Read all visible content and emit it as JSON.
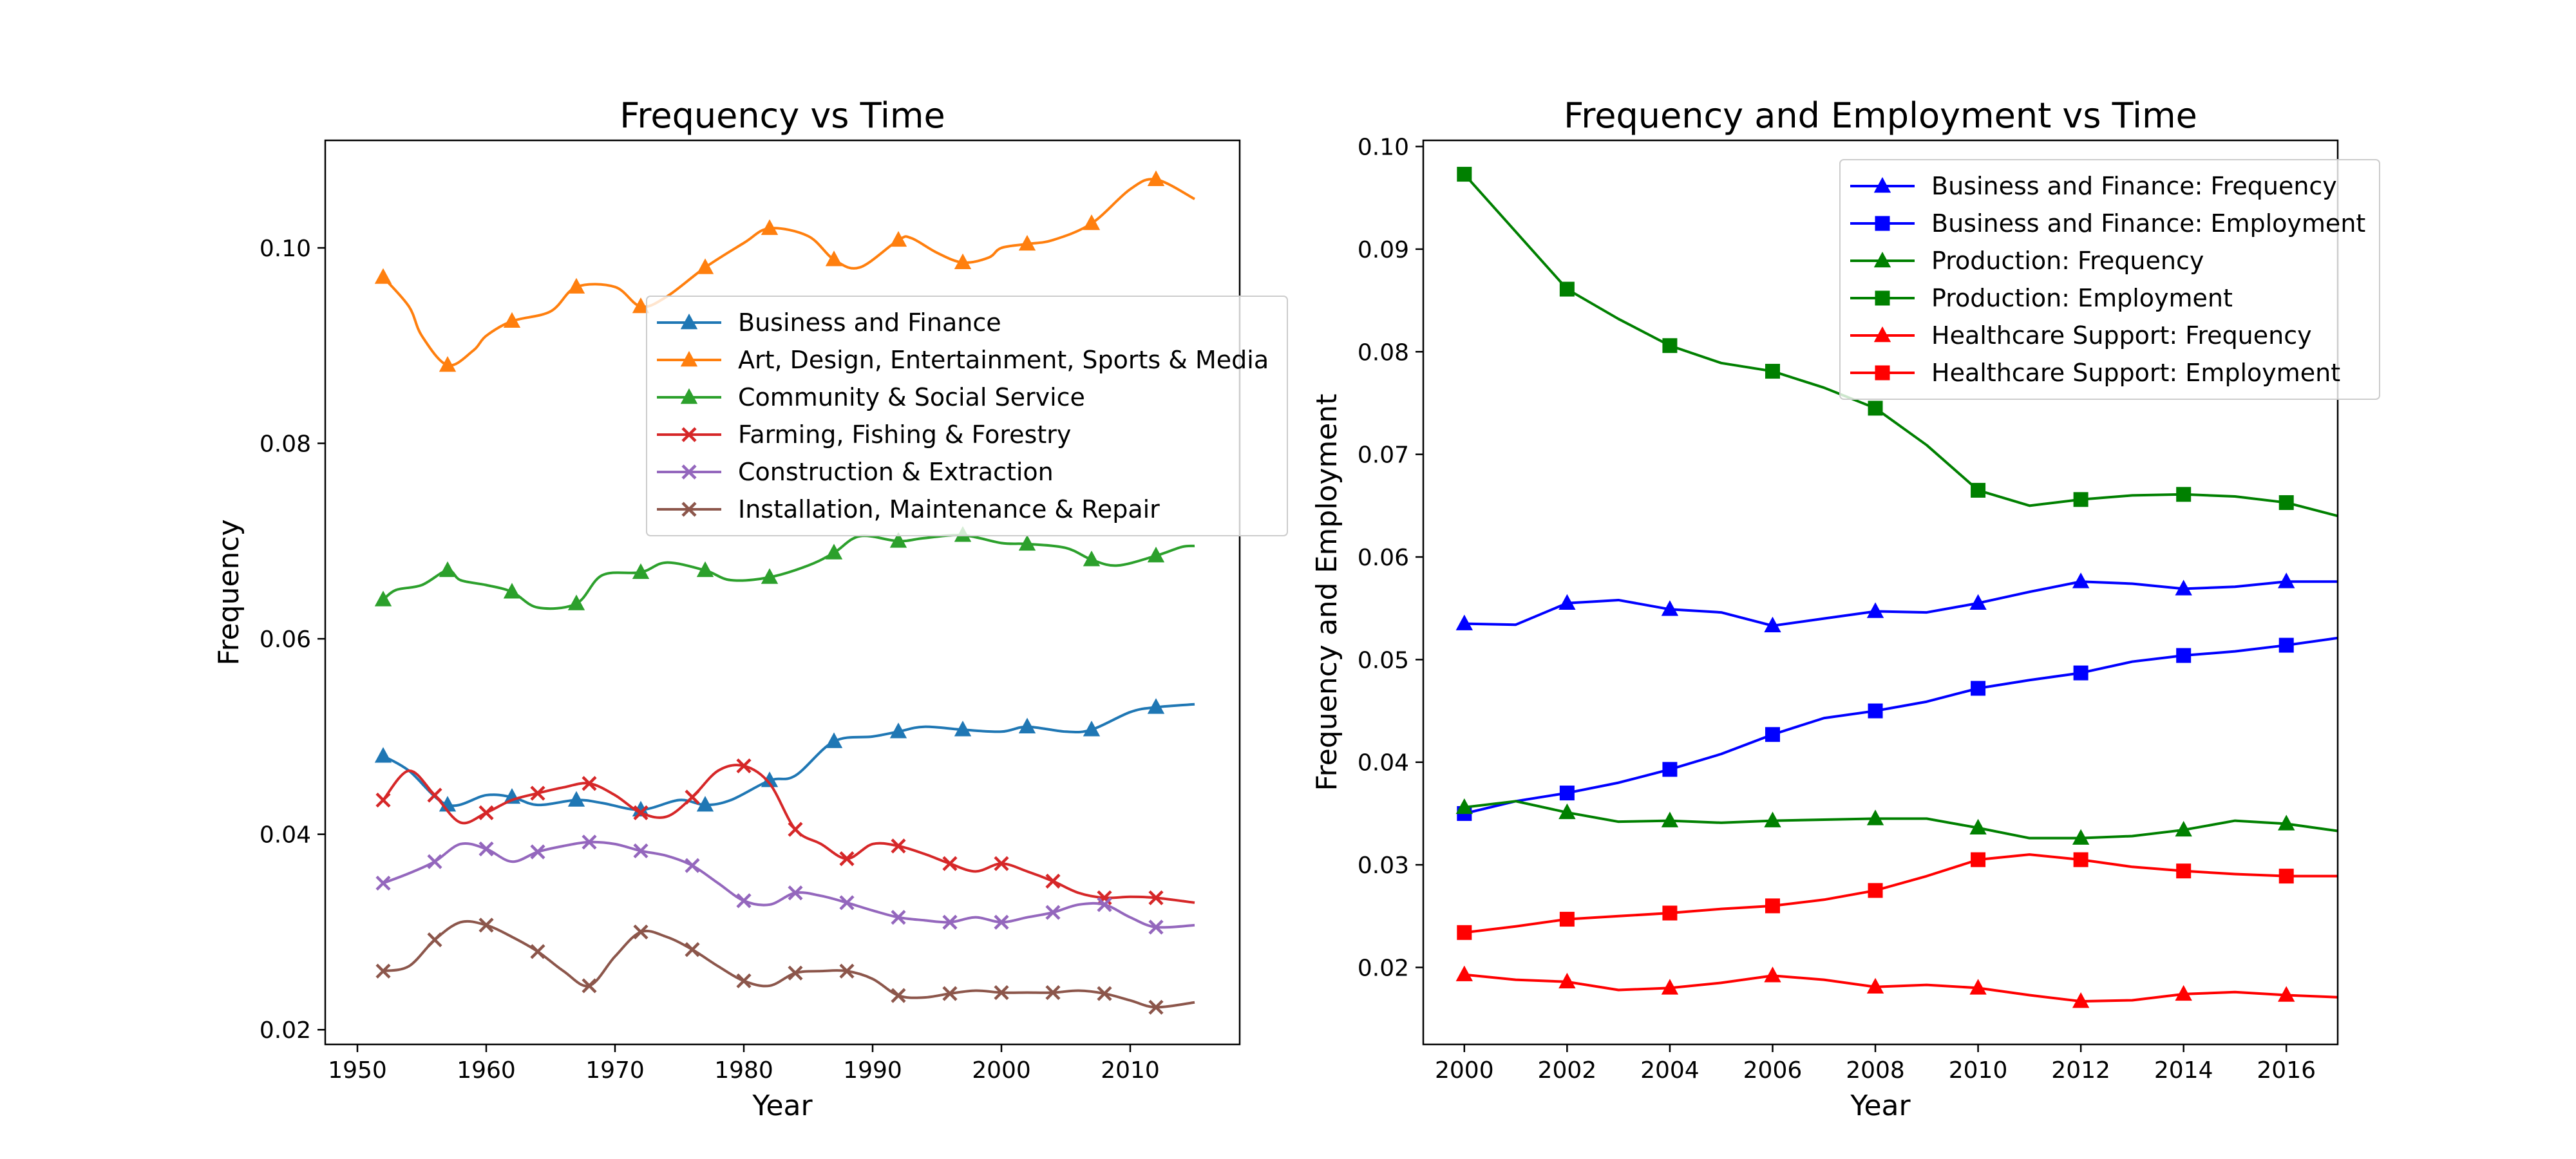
{
  "figure": {
    "background": "#ffffff"
  },
  "chart_data": [
    {
      "type": "line",
      "title": "Frequency vs Time",
      "xlabel": "Year",
      "ylabel": "Frequency",
      "xlim": [
        1947.5,
        2018.5
      ],
      "ylim": [
        0.0185,
        0.111
      ],
      "xticks": [
        1950,
        1960,
        1970,
        1980,
        1990,
        2000,
        2010
      ],
      "xtick_labels": [
        "1950",
        "1960",
        "1970",
        "1980",
        "1990",
        "2000",
        "2010"
      ],
      "yticks": [
        0.02,
        0.04,
        0.06,
        0.08,
        0.1
      ],
      "ytick_labels": [
        "0.02",
        "0.04",
        "0.06",
        "0.08",
        "0.10"
      ],
      "legend_position": "upper-right (overlapping axes edge)",
      "grid": false,
      "series": [
        {
          "name": "Business and Finance",
          "color": "#1f77b4",
          "marker": "triangle",
          "x": [
            1952,
            1954,
            1957,
            1960,
            1962,
            1964,
            1967,
            1969,
            1972,
            1975,
            1977,
            1979,
            1982,
            1984,
            1987,
            1990,
            1992,
            1994,
            1997,
            2000,
            2002,
            2005,
            2007,
            2010,
            2012,
            2015
          ],
          "y": [
            0.048,
            0.0465,
            0.043,
            0.044,
            0.0438,
            0.043,
            0.0435,
            0.0432,
            0.0425,
            0.0435,
            0.043,
            0.0435,
            0.0455,
            0.046,
            0.0495,
            0.05,
            0.0505,
            0.051,
            0.0507,
            0.0505,
            0.051,
            0.0505,
            0.0507,
            0.0525,
            0.053,
            0.0533
          ],
          "marker_x": [
            1952,
            1957,
            1962,
            1967,
            1972,
            1977,
            1982,
            1987,
            1992,
            1997,
            2002,
            2007,
            2012
          ]
        },
        {
          "name": "Art, Design, Entertainment, Sports & Media",
          "color": "#ff7f0e",
          "marker": "triangle",
          "x": [
            1952,
            1954,
            1955,
            1957,
            1959,
            1960,
            1962,
            1965,
            1967,
            1970,
            1972,
            1974,
            1977,
            1980,
            1982,
            1985,
            1987,
            1989,
            1992,
            1993,
            1995,
            1997,
            1999,
            2000,
            2002,
            2004,
            2007,
            2010,
            2012,
            2015
          ],
          "y": [
            0.097,
            0.094,
            0.091,
            0.088,
            0.0895,
            0.091,
            0.0925,
            0.0935,
            0.096,
            0.096,
            0.094,
            0.095,
            0.098,
            0.1005,
            0.102,
            0.1012,
            0.0988,
            0.098,
            0.1008,
            0.101,
            0.0995,
            0.0985,
            0.099,
            0.1,
            0.1004,
            0.1008,
            0.1025,
            0.106,
            0.107,
            0.105
          ],
          "marker_x": [
            1952,
            1957,
            1962,
            1967,
            1972,
            1977,
            1982,
            1987,
            1992,
            1997,
            2002,
            2007,
            2012
          ]
        },
        {
          "name": "Community & Social Service",
          "color": "#2ca02c",
          "marker": "triangle",
          "x": [
            1952,
            1953,
            1955,
            1957,
            1958,
            1960,
            1962,
            1964,
            1967,
            1969,
            1972,
            1974,
            1977,
            1979,
            1982,
            1985,
            1987,
            1989,
            1992,
            1994,
            1997,
            2000,
            2002,
            2005,
            2007,
            2009,
            2012,
            2014,
            2015
          ],
          "y": [
            0.064,
            0.065,
            0.0655,
            0.067,
            0.066,
            0.0655,
            0.0648,
            0.0632,
            0.0636,
            0.0665,
            0.0668,
            0.0678,
            0.067,
            0.066,
            0.0663,
            0.0675,
            0.0688,
            0.0705,
            0.07,
            0.0703,
            0.0706,
            0.0698,
            0.0697,
            0.0693,
            0.0681,
            0.0675,
            0.0685,
            0.0694,
            0.0695
          ],
          "marker_x": [
            1952,
            1957,
            1962,
            1967,
            1972,
            1977,
            1982,
            1987,
            1992,
            1997,
            2002,
            2007,
            2012
          ]
        },
        {
          "name": "Farming, Fishing & Forestry",
          "color": "#d62728",
          "marker": "x",
          "x": [
            1952,
            1954,
            1956,
            1958,
            1960,
            1962,
            1964,
            1966,
            1968,
            1970,
            1972,
            1974,
            1976,
            1978,
            1980,
            1982,
            1984,
            1986,
            1988,
            1990,
            1992,
            1994,
            1996,
            1998,
            2000,
            2002,
            2004,
            2006,
            2008,
            2010,
            2012,
            2015
          ],
          "y": [
            0.0435,
            0.0465,
            0.044,
            0.0412,
            0.0422,
            0.0435,
            0.0442,
            0.0448,
            0.0452,
            0.044,
            0.0422,
            0.0418,
            0.0438,
            0.0465,
            0.047,
            0.0452,
            0.0405,
            0.039,
            0.0375,
            0.039,
            0.0388,
            0.038,
            0.037,
            0.0362,
            0.037,
            0.0362,
            0.0352,
            0.034,
            0.0335,
            0.0336,
            0.0335,
            0.033
          ],
          "marker_x": [
            1952,
            1956,
            1960,
            1964,
            1968,
            1972,
            1976,
            1980,
            1984,
            1988,
            1992,
            1996,
            2000,
            2004,
            2008,
            2012
          ]
        },
        {
          "name": "Construction & Extraction",
          "color": "#9467bd",
          "marker": "x",
          "x": [
            1952,
            1954,
            1956,
            1958,
            1960,
            1962,
            1964,
            1966,
            1968,
            1970,
            1972,
            1974,
            1976,
            1978,
            1980,
            1982,
            1984,
            1986,
            1988,
            1990,
            1992,
            1994,
            1996,
            1998,
            2000,
            2002,
            2004,
            2006,
            2008,
            2010,
            2012,
            2015
          ],
          "y": [
            0.035,
            0.036,
            0.0372,
            0.039,
            0.0385,
            0.0372,
            0.0382,
            0.0388,
            0.0392,
            0.039,
            0.0383,
            0.0378,
            0.0368,
            0.035,
            0.0332,
            0.0328,
            0.034,
            0.0337,
            0.033,
            0.0322,
            0.0315,
            0.0312,
            0.031,
            0.0315,
            0.031,
            0.0315,
            0.032,
            0.0328,
            0.0328,
            0.0315,
            0.0305,
            0.0307
          ],
          "marker_x": [
            1952,
            1956,
            1960,
            1964,
            1968,
            1972,
            1976,
            1980,
            1984,
            1988,
            1992,
            1996,
            2000,
            2004,
            2008,
            2012
          ]
        },
        {
          "name": "Installation, Maintenance & Repair",
          "color": "#8c564b",
          "marker": "x",
          "x": [
            1952,
            1954,
            1956,
            1958,
            1960,
            1962,
            1964,
            1966,
            1968,
            1970,
            1972,
            1974,
            1976,
            1978,
            1980,
            1982,
            1984,
            1986,
            1988,
            1990,
            1992,
            1994,
            1996,
            1998,
            2000,
            2002,
            2004,
            2006,
            2008,
            2010,
            2012,
            2015
          ],
          "y": [
            0.026,
            0.0265,
            0.0292,
            0.031,
            0.0307,
            0.0295,
            0.028,
            0.026,
            0.0245,
            0.0275,
            0.03,
            0.0295,
            0.0282,
            0.0265,
            0.025,
            0.0245,
            0.0258,
            0.026,
            0.026,
            0.0252,
            0.0235,
            0.0233,
            0.0237,
            0.024,
            0.0238,
            0.0238,
            0.0238,
            0.024,
            0.0237,
            0.023,
            0.0223,
            0.0228
          ],
          "marker_x": [
            1952,
            1956,
            1960,
            1964,
            1968,
            1972,
            1976,
            1980,
            1984,
            1988,
            1992,
            1996,
            2000,
            2004,
            2008,
            2012
          ]
        }
      ]
    },
    {
      "type": "line",
      "title": "Frequency and Employment vs Time",
      "xlabel": "Year",
      "ylabel": "Frequency and Employment",
      "xlim": [
        1999.2,
        2017
      ],
      "ylim": [
        0.0125,
        0.1006
      ],
      "xticks": [
        2000,
        2002,
        2004,
        2006,
        2008,
        2010,
        2012,
        2014,
        2016
      ],
      "xtick_labels": [
        "2000",
        "2002",
        "2004",
        "2006",
        "2008",
        "2010",
        "2012",
        "2014",
        "2016"
      ],
      "yticks": [
        0.02,
        0.03,
        0.04,
        0.05,
        0.06,
        0.07,
        0.08,
        0.09,
        0.1
      ],
      "ytick_labels": [
        "0.02",
        "0.03",
        "0.04",
        "0.05",
        "0.06",
        "0.07",
        "0.08",
        "0.09",
        "0.10"
      ],
      "legend_position": "upper-right",
      "grid": false,
      "series": [
        {
          "name": "Business and Finance: Frequency",
          "color": "#0000ff",
          "marker": "triangle",
          "x": [
            2000,
            2001,
            2002,
            2003,
            2004,
            2005,
            2006,
            2007,
            2008,
            2009,
            2010,
            2011,
            2012,
            2013,
            2014,
            2015,
            2016,
            2017
          ],
          "y": [
            0.0535,
            0.0534,
            0.0555,
            0.0558,
            0.0549,
            0.0546,
            0.0533,
            0.054,
            0.0547,
            0.0546,
            0.0555,
            0.0566,
            0.0576,
            0.0574,
            0.0569,
            0.0571,
            0.0576,
            0.0576
          ],
          "marker_x": [
            2000,
            2002,
            2004,
            2006,
            2008,
            2010,
            2012,
            2014,
            2016
          ]
        },
        {
          "name": "Business and Finance: Employment",
          "color": "#0000ff",
          "marker": "square",
          "x": [
            2000,
            2001,
            2002,
            2003,
            2004,
            2005,
            2006,
            2007,
            2008,
            2009,
            2010,
            2011,
            2012,
            2013,
            2014,
            2015,
            2016,
            2017
          ],
          "y": [
            0.035,
            0.0362,
            0.037,
            0.038,
            0.0393,
            0.0408,
            0.0427,
            0.0443,
            0.045,
            0.0459,
            0.0472,
            0.048,
            0.0487,
            0.0498,
            0.0504,
            0.0508,
            0.0514,
            0.0521
          ],
          "marker_x": [
            2000,
            2002,
            2004,
            2006,
            2008,
            2010,
            2012,
            2014,
            2016
          ]
        },
        {
          "name": "Production: Frequency",
          "color": "#008000",
          "marker": "triangle",
          "x": [
            2000,
            2001,
            2002,
            2003,
            2004,
            2005,
            2006,
            2007,
            2008,
            2009,
            2010,
            2011,
            2012,
            2013,
            2014,
            2015,
            2016,
            2017
          ],
          "y": [
            0.0356,
            0.0362,
            0.0351,
            0.0342,
            0.0343,
            0.0341,
            0.0343,
            0.0344,
            0.0345,
            0.0345,
            0.0336,
            0.0326,
            0.0326,
            0.0328,
            0.0334,
            0.0343,
            0.034,
            0.0333
          ],
          "marker_x": [
            2000,
            2002,
            2004,
            2006,
            2008,
            2010,
            2012,
            2014,
            2016
          ]
        },
        {
          "name": "Production: Employment",
          "color": "#008000",
          "marker": "square",
          "x": [
            2000,
            2001,
            2002,
            2003,
            2004,
            2005,
            2006,
            2007,
            2008,
            2009,
            2010,
            2011,
            2012,
            2013,
            2014,
            2015,
            2016,
            2017
          ],
          "y": [
            0.0973,
            0.0917,
            0.0861,
            0.0832,
            0.0806,
            0.0789,
            0.0781,
            0.0765,
            0.0745,
            0.0709,
            0.0665,
            0.065,
            0.0656,
            0.066,
            0.0661,
            0.0659,
            0.0653,
            0.064
          ],
          "marker_x": [
            2000,
            2002,
            2004,
            2006,
            2008,
            2010,
            2012,
            2014,
            2016
          ]
        },
        {
          "name": "Healthcare Support: Frequency",
          "color": "#ff0000",
          "marker": "triangle",
          "x": [
            2000,
            2001,
            2002,
            2003,
            2004,
            2005,
            2006,
            2007,
            2008,
            2009,
            2010,
            2011,
            2012,
            2013,
            2014,
            2015,
            2016,
            2017
          ],
          "y": [
            0.0193,
            0.0188,
            0.0186,
            0.0178,
            0.018,
            0.0185,
            0.0192,
            0.0188,
            0.0181,
            0.0183,
            0.018,
            0.0173,
            0.0167,
            0.0168,
            0.0174,
            0.0176,
            0.0173,
            0.0171
          ],
          "marker_x": [
            2000,
            2002,
            2004,
            2006,
            2008,
            2010,
            2012,
            2014,
            2016
          ]
        },
        {
          "name": "Healthcare Support: Employment",
          "color": "#ff0000",
          "marker": "square",
          "x": [
            2000,
            2001,
            2002,
            2003,
            2004,
            2005,
            2006,
            2007,
            2008,
            2009,
            2010,
            2011,
            2012,
            2013,
            2014,
            2015,
            2016,
            2017
          ],
          "y": [
            0.0234,
            0.024,
            0.0247,
            0.025,
            0.0253,
            0.0257,
            0.026,
            0.0266,
            0.0275,
            0.0289,
            0.0305,
            0.031,
            0.0305,
            0.0298,
            0.0294,
            0.0291,
            0.0289,
            0.0289
          ],
          "marker_x": [
            2000,
            2002,
            2004,
            2006,
            2008,
            2010,
            2012,
            2014,
            2016
          ]
        }
      ]
    }
  ]
}
